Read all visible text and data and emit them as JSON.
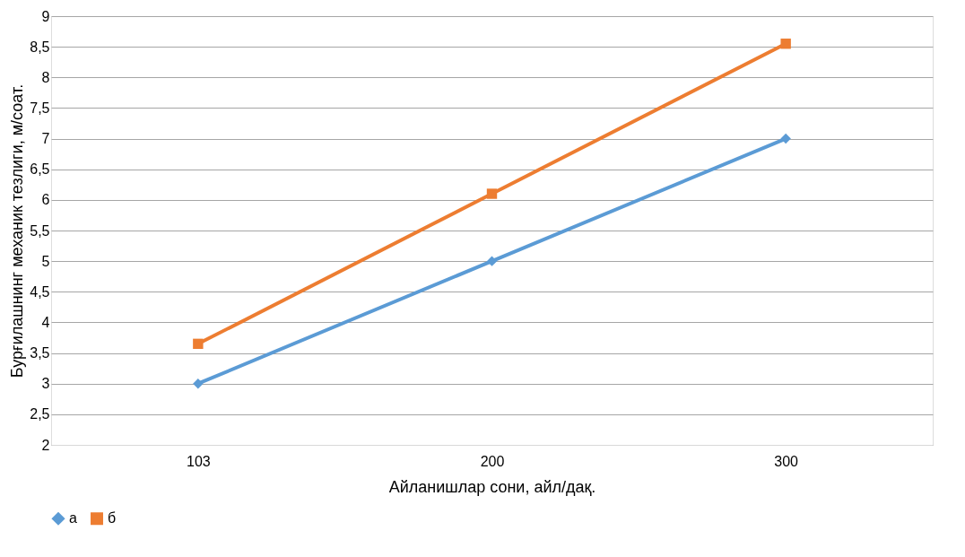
{
  "chart_data": {
    "type": "line",
    "xlabel": "Айланишлар сони, айл/дақ.",
    "ylabel": "Бурғилашнинг механик тезлиги, м/соат.",
    "categories": [
      "103",
      "200",
      "300"
    ],
    "series": [
      {
        "name": "а",
        "color": "#5b9bd5",
        "marker": "diamond",
        "values": [
          3,
          5,
          7
        ]
      },
      {
        "name": "б",
        "color": "#ed7d31",
        "marker": "square",
        "values": [
          3.65,
          6.1,
          8.55
        ]
      }
    ],
    "ylim": [
      2,
      9
    ],
    "yticks": [
      2,
      {
        "value": 2.5,
        "label": "2,5"
      },
      3,
      {
        "value": 3.5,
        "label": "3,5"
      },
      4,
      {
        "value": 4.5,
        "label": "4,5"
      },
      5,
      {
        "value": 5.5,
        "label": "5,5"
      },
      6,
      {
        "value": 6.5,
        "label": "6,5"
      },
      7,
      {
        "value": 7.5,
        "label": "7,5"
      },
      8,
      {
        "value": 8.5,
        "label": "8,5"
      },
      9
    ],
    "grid": "y",
    "legend": "bottom",
    "line_style": "solid"
  }
}
